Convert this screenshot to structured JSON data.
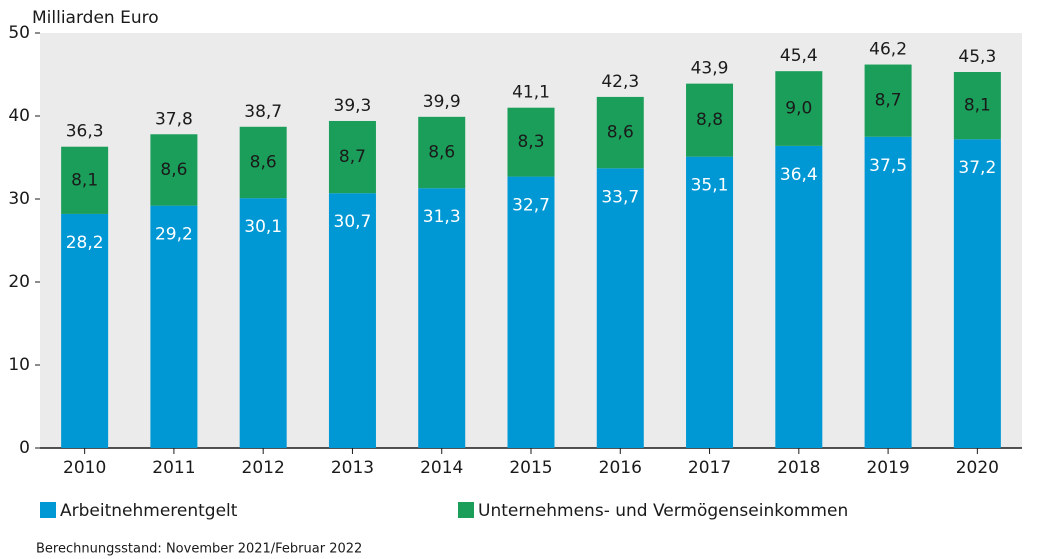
{
  "chart_data": {
    "type": "stacked_bar",
    "y_axis_label": "Milliarden Euro",
    "categories": [
      "2010",
      "2011",
      "2012",
      "2013",
      "2014",
      "2015",
      "2016",
      "2017",
      "2018",
      "2019",
      "2020"
    ],
    "series": [
      {
        "name": "Arbeitnehmerentgelt",
        "color": "#0098d4",
        "values": [
          28.2,
          29.2,
          30.1,
          30.7,
          31.3,
          32.7,
          33.7,
          35.1,
          36.4,
          37.5,
          37.2
        ],
        "value_labels": [
          "28,2",
          "29,2",
          "30,1",
          "30,7",
          "31,3",
          "32,7",
          "33,7",
          "35,1",
          "36,4",
          "37,5",
          "37,2"
        ]
      },
      {
        "name": "Unternehmens- und Vermögenseinkommen",
        "color": "#1a9e5a",
        "values": [
          8.1,
          8.6,
          8.6,
          8.7,
          8.6,
          8.3,
          8.6,
          8.8,
          9.0,
          8.7,
          8.1
        ],
        "value_labels": [
          "8,1",
          "8,6",
          "8,6",
          "8,7",
          "8,6",
          "8,3",
          "8,6",
          "8,8",
          "9,0",
          "8,7",
          "8,1"
        ]
      }
    ],
    "totals": [
      36.3,
      37.8,
      38.7,
      39.3,
      39.9,
      41.1,
      42.3,
      43.9,
      45.4,
      46.2,
      45.3
    ],
    "total_labels": [
      "36,3",
      "37,8",
      "38,7",
      "39,3",
      "39,9",
      "41,1",
      "42,3",
      "43,9",
      "45,4",
      "46,2",
      "45,3"
    ],
    "ylim": [
      0,
      50
    ],
    "yticks": [
      0,
      10,
      20,
      30,
      40,
      50
    ],
    "grid": false,
    "footnote": "Berechnungsstand: November 2021/Februar 2022"
  }
}
